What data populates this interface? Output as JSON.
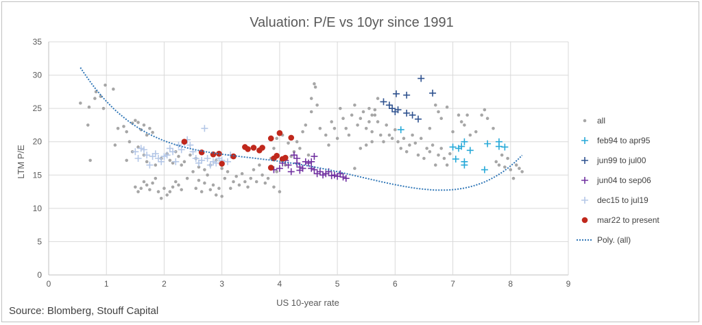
{
  "chart_data": {
    "type": "scatter",
    "title": "Valuation: P/E vs 10yr since 1991",
    "xlabel": "US 10-year rate",
    "ylabel": "LTM P/E",
    "xlim": [
      0,
      9
    ],
    "ylim": [
      0,
      35
    ],
    "x_ticks": [
      "0",
      "1",
      "2",
      "3",
      "4",
      "5",
      "6",
      "7",
      "8",
      "9"
    ],
    "y_ticks": [
      "0",
      "5",
      "10",
      "15",
      "20",
      "25",
      "30",
      "35"
    ],
    "grid": true,
    "legend_position": "right",
    "series": [
      {
        "name": "all",
        "marker": "dot",
        "color": "#a6a6a6",
        "points": [
          [
            0.55,
            25.8
          ],
          [
            0.7,
            25.2
          ],
          [
            0.68,
            22.5
          ],
          [
            0.72,
            17.2
          ],
          [
            0.8,
            26.5
          ],
          [
            0.82,
            27.5
          ],
          [
            0.9,
            26.8
          ],
          [
            0.95,
            25.0
          ],
          [
            0.98,
            28.5
          ],
          [
            1.12,
            27.9
          ],
          [
            1.15,
            19.5
          ],
          [
            1.2,
            22.0
          ],
          [
            1.3,
            22.3
          ],
          [
            1.35,
            21.5
          ],
          [
            1.4,
            20.0
          ],
          [
            1.45,
            22.8
          ],
          [
            1.5,
            23.2
          ],
          [
            1.55,
            22.9
          ],
          [
            1.6,
            21.8
          ],
          [
            1.65,
            22.5
          ],
          [
            1.7,
            21.0
          ],
          [
            1.75,
            22.0
          ],
          [
            1.8,
            21.4
          ],
          [
            1.35,
            17.2
          ],
          [
            1.45,
            18.5
          ],
          [
            1.55,
            19.2
          ],
          [
            1.65,
            18.0
          ],
          [
            1.7,
            17.0
          ],
          [
            1.85,
            16.5
          ],
          [
            1.95,
            17.5
          ],
          [
            2.05,
            18.2
          ],
          [
            2.1,
            17.2
          ],
          [
            2.15,
            16.8
          ],
          [
            2.2,
            18.5
          ],
          [
            2.25,
            17.8
          ],
          [
            2.3,
            16.5
          ],
          [
            2.35,
            17.0
          ],
          [
            2.45,
            18.0
          ],
          [
            2.55,
            17.5
          ],
          [
            2.6,
            16.2
          ],
          [
            2.7,
            15.8
          ],
          [
            2.8,
            16.5
          ],
          [
            2.9,
            17.2
          ],
          [
            3.0,
            16.0
          ],
          [
            1.5,
            13.2
          ],
          [
            1.55,
            12.5
          ],
          [
            1.6,
            13.0
          ],
          [
            1.65,
            14.0
          ],
          [
            1.7,
            13.5
          ],
          [
            1.75,
            12.8
          ],
          [
            1.8,
            13.8
          ],
          [
            1.85,
            14.5
          ],
          [
            1.9,
            12.5
          ],
          [
            1.95,
            11.5
          ],
          [
            2.0,
            13.0
          ],
          [
            2.05,
            12.0
          ],
          [
            2.1,
            12.5
          ],
          [
            2.15,
            13.2
          ],
          [
            2.2,
            14.0
          ],
          [
            2.25,
            13.5
          ],
          [
            2.3,
            12.8
          ],
          [
            2.4,
            14.5
          ],
          [
            2.5,
            15.5
          ],
          [
            2.55,
            13.0
          ],
          [
            2.6,
            14.2
          ],
          [
            2.65,
            12.5
          ],
          [
            2.7,
            13.8
          ],
          [
            2.75,
            15.0
          ],
          [
            2.8,
            12.8
          ],
          [
            2.85,
            13.5
          ],
          [
            2.9,
            12.0
          ],
          [
            2.95,
            13.0
          ],
          [
            3.0,
            11.8
          ],
          [
            3.05,
            14.5
          ],
          [
            3.1,
            15.5
          ],
          [
            3.15,
            13.0
          ],
          [
            3.2,
            14.0
          ],
          [
            3.25,
            14.8
          ],
          [
            3.3,
            13.5
          ],
          [
            3.35,
            15.2
          ],
          [
            3.4,
            14.0
          ],
          [
            3.45,
            13.2
          ],
          [
            3.5,
            14.5
          ],
          [
            3.55,
            15.8
          ],
          [
            3.6,
            14.0
          ],
          [
            3.65,
            16.5
          ],
          [
            3.7,
            15.0
          ],
          [
            3.75,
            13.8
          ],
          [
            3.8,
            14.5
          ],
          [
            3.85,
            16.0
          ],
          [
            3.9,
            13.2
          ],
          [
            3.95,
            15.5
          ],
          [
            4.0,
            12.5
          ],
          [
            3.85,
            17.5
          ],
          [
            3.9,
            19.0
          ],
          [
            3.95,
            20.5
          ],
          [
            4.05,
            21.0
          ],
          [
            4.1,
            16.5
          ],
          [
            4.15,
            19.8
          ],
          [
            4.2,
            17.8
          ],
          [
            4.25,
            18.5
          ],
          [
            4.3,
            20.0
          ],
          [
            4.35,
            19.0
          ],
          [
            4.4,
            21.5
          ],
          [
            4.45,
            22.5
          ],
          [
            4.5,
            18.0
          ],
          [
            4.55,
            24.5
          ],
          [
            4.6,
            28.7
          ],
          [
            4.62,
            28.2
          ],
          [
            4.55,
            26.5
          ],
          [
            4.65,
            25.5
          ],
          [
            4.7,
            22.0
          ],
          [
            4.8,
            21.0
          ],
          [
            4.85,
            19.5
          ],
          [
            4.9,
            23.0
          ],
          [
            4.95,
            22.0
          ],
          [
            5.0,
            20.5
          ],
          [
            5.05,
            25.0
          ],
          [
            5.1,
            23.5
          ],
          [
            5.15,
            22.0
          ],
          [
            5.2,
            21.0
          ],
          [
            5.25,
            24.0
          ],
          [
            5.3,
            25.5
          ],
          [
            5.35,
            22.5
          ],
          [
            5.4,
            23.5
          ],
          [
            5.45,
            24.5
          ],
          [
            5.5,
            22.0
          ],
          [
            5.55,
            23.0
          ],
          [
            5.6,
            21.5
          ],
          [
            5.65,
            24.0
          ],
          [
            5.7,
            23.0
          ],
          [
            5.75,
            21.0
          ],
          [
            5.8,
            20.0
          ],
          [
            5.85,
            22.5
          ],
          [
            5.9,
            21.0
          ],
          [
            5.95,
            20.5
          ],
          [
            6.0,
            21.8
          ],
          [
            6.05,
            20.0
          ],
          [
            6.1,
            19.0
          ],
          [
            6.15,
            20.5
          ],
          [
            6.2,
            18.5
          ],
          [
            6.25,
            19.5
          ],
          [
            6.3,
            21.0
          ],
          [
            6.35,
            19.8
          ],
          [
            6.4,
            18.0
          ],
          [
            6.45,
            20.5
          ],
          [
            6.5,
            17.5
          ],
          [
            6.55,
            19.0
          ],
          [
            6.6,
            18.5
          ],
          [
            6.65,
            19.5
          ],
          [
            6.7,
            16.5
          ],
          [
            6.75,
            18.0
          ],
          [
            6.8,
            19.0
          ],
          [
            6.85,
            17.5
          ],
          [
            6.9,
            16.5
          ],
          [
            6.95,
            18.2
          ],
          [
            6.6,
            22.0
          ],
          [
            6.7,
            25.5
          ],
          [
            6.75,
            24.5
          ],
          [
            6.8,
            23.5
          ],
          [
            6.9,
            25.2
          ],
          [
            7.0,
            21.5
          ],
          [
            7.1,
            24.0
          ],
          [
            7.15,
            23.0
          ],
          [
            7.2,
            22.5
          ],
          [
            7.25,
            24.0
          ],
          [
            7.3,
            21.0
          ],
          [
            7.4,
            21.5
          ],
          [
            7.5,
            24.0
          ],
          [
            7.55,
            24.8
          ],
          [
            7.6,
            23.5
          ],
          [
            7.7,
            22.0
          ],
          [
            7.75,
            17.0
          ],
          [
            7.8,
            16.5
          ],
          [
            7.85,
            18.0
          ],
          [
            7.9,
            16.2
          ],
          [
            7.95,
            17.5
          ],
          [
            8.0,
            15.8
          ],
          [
            8.05,
            14.5
          ],
          [
            8.1,
            16.5
          ],
          [
            8.15,
            16.0
          ],
          [
            8.2,
            15.5
          ],
          [
            5.55,
            25.0
          ],
          [
            5.6,
            24.0
          ],
          [
            5.65,
            24.8
          ],
          [
            5.7,
            26.5
          ],
          [
            5.3,
            16.0
          ],
          [
            5.4,
            19.0
          ],
          [
            5.5,
            19.5
          ],
          [
            5.6,
            20.0
          ]
        ]
      },
      {
        "name": "feb94 to apr95",
        "marker": "plus",
        "color": "#27a9d8",
        "points": [
          [
            6.1,
            21.8
          ],
          [
            7.0,
            19.2
          ],
          [
            7.05,
            17.4
          ],
          [
            7.1,
            19.0
          ],
          [
            7.15,
            19.3
          ],
          [
            7.2,
            16.5
          ],
          [
            7.2,
            17.0
          ],
          [
            7.2,
            20.0
          ],
          [
            7.3,
            18.7
          ],
          [
            7.55,
            15.8
          ],
          [
            7.6,
            19.7
          ],
          [
            7.8,
            20.0
          ],
          [
            7.8,
            19.3
          ],
          [
            7.9,
            19.2
          ]
        ]
      },
      {
        "name": "jun99 to jul00",
        "marker": "plus",
        "color": "#2f528f",
        "points": [
          [
            5.8,
            26.0
          ],
          [
            5.9,
            25.5
          ],
          [
            5.95,
            25.0
          ],
          [
            6.0,
            24.5
          ],
          [
            6.05,
            24.8
          ],
          [
            6.02,
            27.2
          ],
          [
            6.2,
            27.0
          ],
          [
            6.2,
            24.3
          ],
          [
            6.3,
            24.0
          ],
          [
            6.4,
            23.4
          ],
          [
            6.45,
            29.5
          ],
          [
            6.65,
            27.3
          ]
        ]
      },
      {
        "name": "jun04 to sep06",
        "marker": "plus",
        "color": "#7030a0",
        "points": [
          [
            3.9,
            15.8
          ],
          [
            4.0,
            16.0
          ],
          [
            4.05,
            16.8
          ],
          [
            4.1,
            17.2
          ],
          [
            4.15,
            16.5
          ],
          [
            4.2,
            15.5
          ],
          [
            4.25,
            18.0
          ],
          [
            4.3,
            17.5
          ],
          [
            4.35,
            16.2
          ],
          [
            4.4,
            16.0
          ],
          [
            4.45,
            17.0
          ],
          [
            4.5,
            16.8
          ],
          [
            4.55,
            16.0
          ],
          [
            4.6,
            15.8
          ],
          [
            4.65,
            15.2
          ],
          [
            4.7,
            15.5
          ],
          [
            4.75,
            15.0
          ],
          [
            4.8,
            15.2
          ],
          [
            4.85,
            15.5
          ],
          [
            4.95,
            15.0
          ],
          [
            5.0,
            14.8
          ],
          [
            5.05,
            15.2
          ],
          [
            5.1,
            14.7
          ],
          [
            5.15,
            14.5
          ],
          [
            4.9,
            14.9
          ],
          [
            4.55,
            17.0
          ],
          [
            4.6,
            17.8
          ],
          [
            4.3,
            16.8
          ],
          [
            4.35,
            15.7
          ]
        ]
      },
      {
        "name": "dec15 to jul19",
        "marker": "plus",
        "color": "#b4c7e7",
        "points": [
          [
            1.5,
            18.5
          ],
          [
            1.55,
            17.5
          ],
          [
            1.6,
            19.0
          ],
          [
            1.65,
            18.8
          ],
          [
            1.7,
            18.0
          ],
          [
            1.75,
            16.5
          ],
          [
            1.8,
            17.8
          ],
          [
            1.85,
            18.2
          ],
          [
            1.9,
            17.5
          ],
          [
            1.95,
            17.0
          ],
          [
            2.0,
            17.8
          ],
          [
            2.05,
            18.0
          ],
          [
            2.1,
            19.0
          ],
          [
            2.15,
            18.5
          ],
          [
            2.2,
            17.0
          ],
          [
            2.25,
            19.5
          ],
          [
            2.3,
            18.8
          ],
          [
            2.35,
            19.8
          ],
          [
            2.4,
            20.3
          ],
          [
            2.45,
            19.5
          ],
          [
            2.5,
            18.5
          ],
          [
            2.55,
            17.5
          ],
          [
            2.6,
            16.8
          ],
          [
            2.65,
            17.2
          ],
          [
            2.7,
            22.0
          ],
          [
            2.75,
            17.5
          ],
          [
            2.8,
            16.5
          ],
          [
            2.85,
            17.0
          ],
          [
            2.9,
            16.8
          ],
          [
            2.95,
            17.5
          ],
          [
            3.0,
            17.2
          ],
          [
            3.1,
            17.0
          ],
          [
            3.15,
            18.0
          ]
        ]
      },
      {
        "name": "mar22 to present",
        "marker": "circle",
        "color": "#c0281c",
        "points": [
          [
            2.35,
            20.0
          ],
          [
            2.65,
            18.4
          ],
          [
            2.85,
            18.1
          ],
          [
            2.95,
            18.2
          ],
          [
            3.0,
            16.7
          ],
          [
            3.2,
            17.8
          ],
          [
            3.4,
            19.2
          ],
          [
            3.45,
            18.9
          ],
          [
            3.55,
            19.1
          ],
          [
            3.65,
            18.7
          ],
          [
            3.7,
            19.1
          ],
          [
            3.85,
            20.5
          ],
          [
            3.85,
            16.1
          ],
          [
            3.9,
            17.5
          ],
          [
            3.95,
            17.9
          ],
          [
            4.0,
            21.3
          ],
          [
            4.05,
            17.4
          ],
          [
            4.1,
            17.6
          ],
          [
            4.2,
            20.6
          ]
        ]
      },
      {
        "name": "Poly. (all)",
        "marker": "dotted-line",
        "color": "#2e75b6",
        "trend_coefficients": [
          40.34,
          -20.32,
          7.103,
          -1.122,
          0.0631
        ],
        "x_range": [
          0.55,
          8.2
        ]
      }
    ]
  },
  "source_text": "Source: Blomberg, Stouff Capital"
}
